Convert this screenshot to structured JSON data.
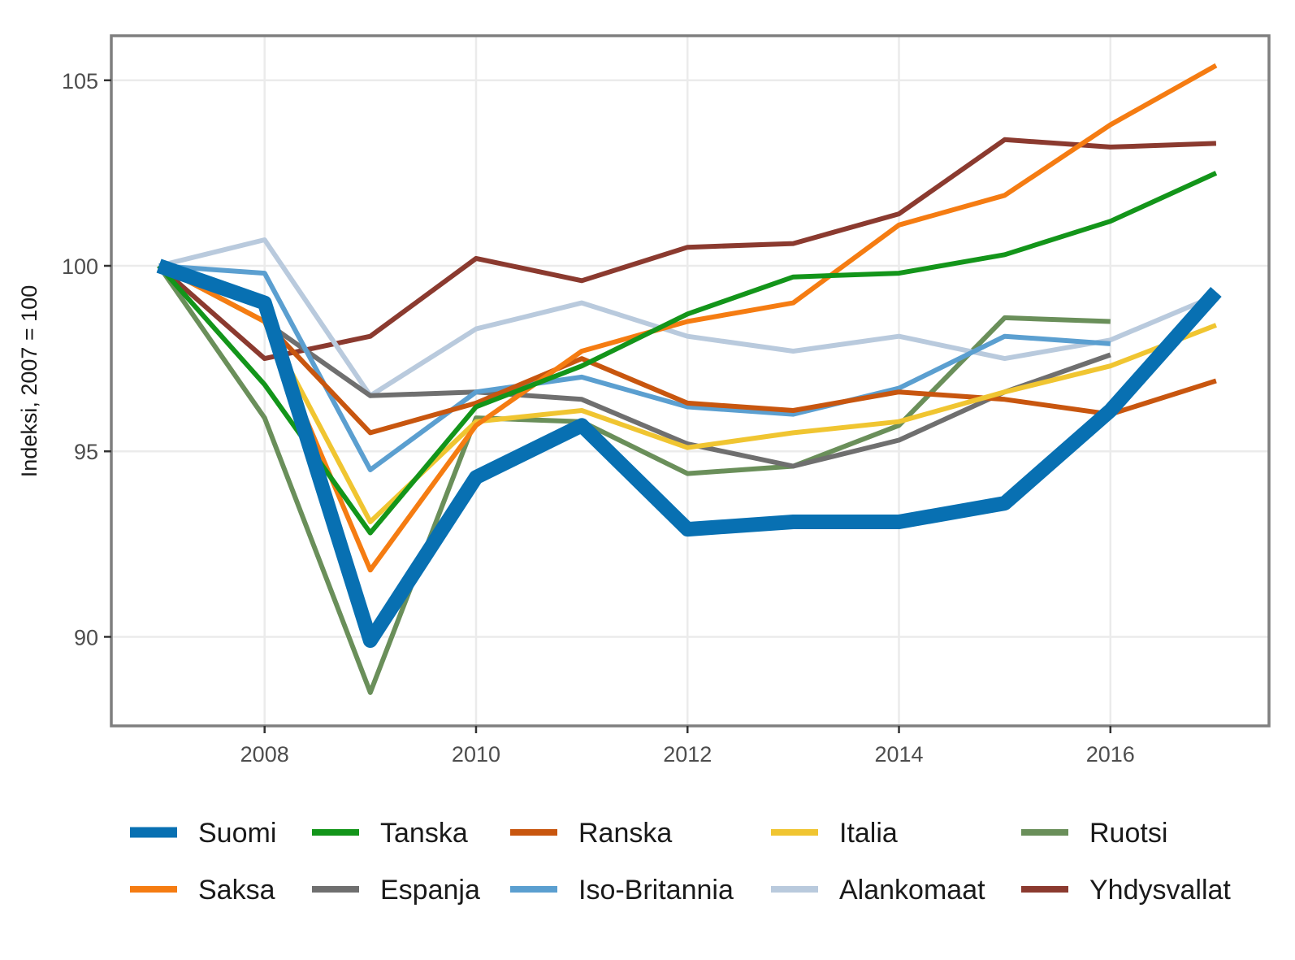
{
  "chart_data": {
    "type": "line",
    "title": "",
    "xlabel": "",
    "ylabel": "Indeksi, 2007 = 100",
    "xlim": [
      2006.55,
      2017.5
    ],
    "ylim": [
      87.6,
      106.2
    ],
    "x_ticks": [
      "2008",
      "2010",
      "2012",
      "2014",
      "2016"
    ],
    "y_ticks": [
      "90",
      "95",
      "100",
      "105"
    ],
    "grid": true,
    "legend_position": "bottom",
    "series": [
      {
        "name": "Ruotsi",
        "color": "#6a8f5a",
        "width": 6,
        "x": [
          2007,
          2008,
          2009,
          2010,
          2011,
          2012,
          2013,
          2014,
          2015,
          2016
        ],
        "y": [
          100.0,
          95.9,
          88.5,
          95.9,
          95.8,
          94.4,
          94.6,
          95.7,
          98.6,
          98.5
        ]
      },
      {
        "name": "Yhdysvallat",
        "color": "#8b3a2f",
        "width": 6,
        "x": [
          2007,
          2008,
          2009,
          2010,
          2011,
          2012,
          2013,
          2014,
          2015,
          2016,
          2017
        ],
        "y": [
          100.0,
          97.5,
          98.1,
          100.2,
          99.6,
          100.5,
          100.6,
          101.4,
          103.4,
          103.2,
          103.3
        ]
      },
      {
        "name": "Alankomaat",
        "color": "#b9cadd",
        "width": 6,
        "x": [
          2007,
          2008,
          2009,
          2010,
          2011,
          2012,
          2013,
          2014,
          2015,
          2016,
          2017
        ],
        "y": [
          100.0,
          100.7,
          96.5,
          98.3,
          99.0,
          98.1,
          97.7,
          98.1,
          97.5,
          98.0,
          99.2
        ]
      },
      {
        "name": "Espanja",
        "color": "#6f6f6f",
        "width": 6,
        "x": [
          2007,
          2008,
          2009,
          2010,
          2011,
          2012,
          2013,
          2014,
          2015,
          2016
        ],
        "y": [
          100.0,
          98.5,
          96.5,
          96.6,
          96.4,
          95.2,
          94.6,
          95.3,
          96.6,
          97.6
        ]
      },
      {
        "name": "Iso-Britannia",
        "color": "#5b9fd0",
        "width": 6,
        "x": [
          2007,
          2008,
          2009,
          2010,
          2011,
          2012,
          2013,
          2014,
          2015,
          2016
        ],
        "y": [
          100.0,
          99.8,
          94.5,
          96.6,
          97.0,
          96.2,
          96.0,
          96.7,
          98.1,
          97.9
        ]
      },
      {
        "name": "Ranska",
        "color": "#c8560f",
        "width": 6,
        "x": [
          2007,
          2008,
          2009,
          2010,
          2011,
          2012,
          2013,
          2014,
          2015,
          2016,
          2017
        ],
        "y": [
          100.0,
          98.5,
          95.5,
          96.3,
          97.5,
          96.3,
          96.1,
          96.6,
          96.4,
          96.0,
          96.9
        ]
      },
      {
        "name": "Italia",
        "color": "#f0c531",
        "width": 6,
        "x": [
          2007,
          2008,
          2009,
          2010,
          2011,
          2012,
          2013,
          2014,
          2015,
          2016,
          2017
        ],
        "y": [
          100.0,
          98.5,
          93.1,
          95.8,
          96.1,
          95.1,
          95.5,
          95.8,
          96.6,
          97.3,
          98.4
        ]
      },
      {
        "name": "Saksa",
        "color": "#f57c12",
        "width": 6,
        "x": [
          2007,
          2008,
          2009,
          2010,
          2011,
          2012,
          2013,
          2014,
          2015,
          2016,
          2017
        ],
        "y": [
          100.0,
          98.5,
          91.8,
          95.7,
          97.7,
          98.5,
          99.0,
          101.1,
          101.9,
          103.8,
          105.4
        ]
      },
      {
        "name": "Tanska",
        "color": "#13951a",
        "width": 6,
        "x": [
          2007,
          2008,
          2009,
          2010,
          2011,
          2012,
          2013,
          2014,
          2015,
          2016,
          2017
        ],
        "y": [
          100.0,
          96.8,
          92.8,
          96.2,
          97.3,
          98.7,
          99.7,
          99.8,
          100.3,
          101.2,
          102.5
        ]
      },
      {
        "name": "Suomi",
        "color": "#0870b2",
        "width": 18,
        "x": [
          2007,
          2008,
          2009,
          2010,
          2011,
          2012,
          2013,
          2014,
          2015,
          2016,
          2017
        ],
        "y": [
          100.0,
          99.0,
          89.9,
          94.3,
          95.7,
          92.9,
          93.1,
          93.1,
          93.6,
          96.1,
          99.3
        ]
      }
    ],
    "legend": [
      [
        "Suomi",
        "Tanska",
        "Ranska",
        "Italia",
        "Ruotsi"
      ],
      [
        "Saksa",
        "Espanja",
        "Iso-Britannia",
        "Alankomaat",
        "Yhdysvallat"
      ]
    ]
  }
}
